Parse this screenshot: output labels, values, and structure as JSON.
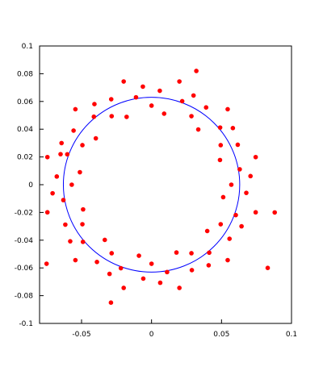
{
  "chart_data": {
    "type": "scatter",
    "xlim": [
      -0.08,
      0.1
    ],
    "ylim": [
      -0.1,
      0.1
    ],
    "xticks": [
      -0.05,
      0,
      0.05,
      0.1
    ],
    "yticks": [
      -0.1,
      -0.08,
      -0.06,
      -0.04,
      -0.02,
      0,
      0.02,
      0.04,
      0.06,
      0.08,
      0.1
    ],
    "circle": {
      "center": [
        0,
        0
      ],
      "radius": 0.063,
      "color": "#0000ff"
    },
    "series": [
      {
        "color": "#ff0000",
        "x": [
          0.057,
          0.0707,
          0.063,
          0.0744,
          0.0489,
          0.0616,
          0.0494,
          0.0581,
          0.049,
          0.0544,
          0.0334,
          0.039,
          0.0285,
          0.03,
          0.0219,
          0.0199,
          0.009,
          0.0059,
          0,
          -0.0062,
          -0.0111,
          -0.0199,
          -0.0178,
          -0.0288,
          -0.0285,
          -0.0408,
          -0.0412,
          -0.0544,
          -0.0398,
          -0.0557,
          -0.0494,
          -0.0643,
          -0.0602,
          -0.0744,
          -0.0512,
          -0.0677,
          -0.057,
          -0.0707,
          -0.063,
          -0.0744,
          -0.0489,
          -0.0616,
          -0.0494,
          -0.0581,
          -0.049,
          -0.0544,
          -0.0334,
          -0.039,
          -0.0285,
          -0.03,
          -0.0219,
          -0.0199,
          -0.009,
          -0.0059,
          0,
          0.0062,
          0.0111,
          0.0199,
          0.0178,
          0.0288,
          0.0285,
          0.0408,
          0.0412,
          0.0544,
          0.0398,
          0.0557,
          0.0494,
          0.0643,
          0.0602,
          0.0744,
          0.0512,
          0.0677,
          0.032,
          -0.029,
          0.088,
          -0.075,
          0.083,
          -0.065
        ],
        "y": [
          0,
          0.0062,
          0.0111,
          0.0199,
          0.0178,
          0.0288,
          0.0285,
          0.0408,
          0.0412,
          0.0544,
          0.0398,
          0.0557,
          0.0494,
          0.0643,
          0.0602,
          0.0744,
          0.0512,
          0.0677,
          0.057,
          0.0707,
          0.063,
          0.0744,
          0.0489,
          0.0616,
          0.0494,
          0.0581,
          0.049,
          0.0544,
          0.0334,
          0.039,
          0.0285,
          0.03,
          0.0219,
          0.0199,
          0.009,
          0.0059,
          0,
          -0.0062,
          -0.0111,
          -0.0199,
          -0.0178,
          -0.0288,
          -0.0285,
          -0.0408,
          -0.0412,
          -0.0544,
          -0.0398,
          -0.0557,
          -0.0494,
          -0.0643,
          -0.0602,
          -0.0744,
          -0.0512,
          -0.0677,
          -0.057,
          -0.0707,
          -0.063,
          -0.0744,
          -0.0489,
          -0.0616,
          -0.0494,
          -0.0581,
          -0.049,
          -0.0544,
          -0.0334,
          -0.039,
          -0.0285,
          -0.03,
          -0.0219,
          -0.0199,
          -0.009,
          -0.0059,
          0.082,
          -0.085,
          -0.02,
          -0.057,
          -0.06,
          0.022
        ]
      }
    ]
  }
}
